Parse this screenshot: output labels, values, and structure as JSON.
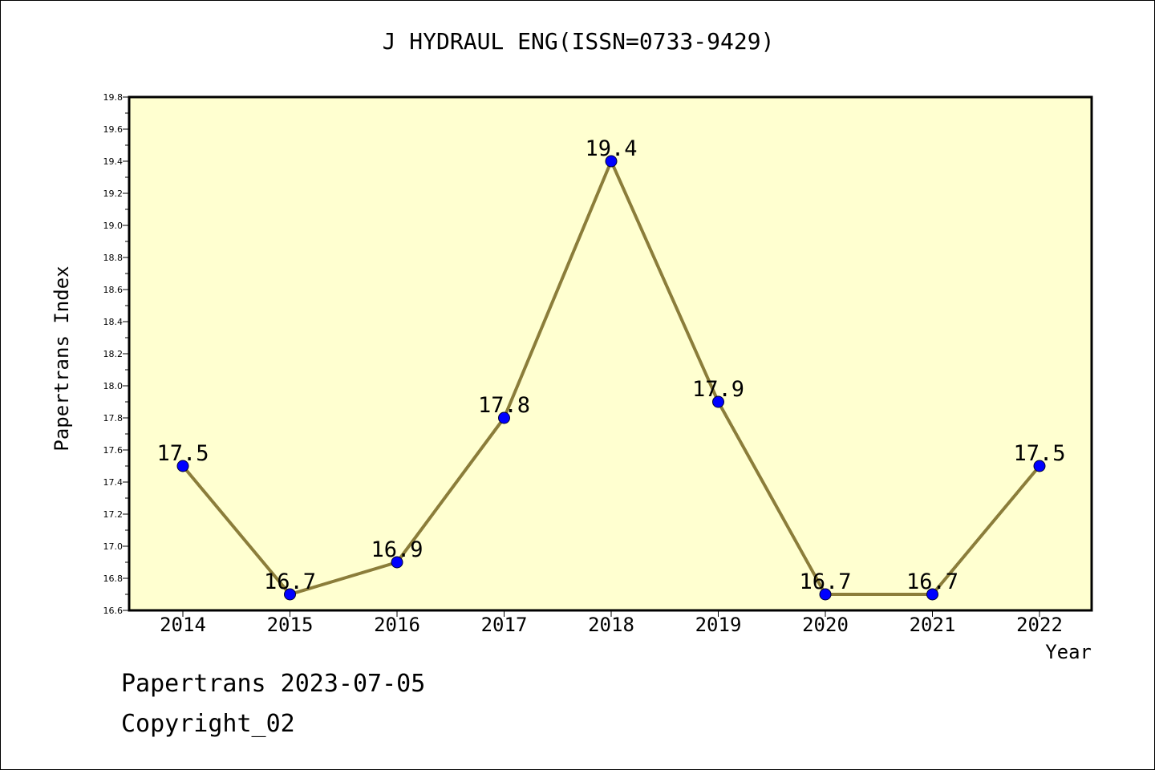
{
  "chart_data": {
    "type": "line",
    "title": "J HYDRAUL ENG(ISSN=0733-9429)",
    "xlabel": "Year",
    "ylabel": "Papertrans Index",
    "categories": [
      "2014",
      "2015",
      "2016",
      "2017",
      "2018",
      "2019",
      "2020",
      "2021",
      "2022"
    ],
    "series": [
      {
        "values": [
          17.5,
          16.7,
          16.9,
          17.8,
          19.4,
          17.9,
          16.7,
          16.7,
          17.5
        ],
        "data_labels": [
          "17.5",
          "16.7",
          "16.9",
          "17.8",
          "19.4",
          "17.9",
          "16.7",
          "16.7",
          "17.5"
        ]
      }
    ],
    "ylim": [
      16.6,
      19.8
    ],
    "y_ticks": [
      "16.6",
      "16.8",
      "17.0",
      "17.2",
      "17.4",
      "17.6",
      "17.8",
      "18.0",
      "18.2",
      "18.4",
      "18.6",
      "18.8",
      "19.0",
      "19.2",
      "19.4",
      "19.6",
      "19.8"
    ],
    "grid": false,
    "legend": "none",
    "colors": {
      "plot_background": "#ffffd0",
      "line": "#8b7d3a",
      "marker": "#0000ff",
      "axis": "#000000"
    }
  },
  "footer": {
    "date_line": "Papertrans 2023-07-05",
    "copyright_line": "Copyright_02"
  }
}
